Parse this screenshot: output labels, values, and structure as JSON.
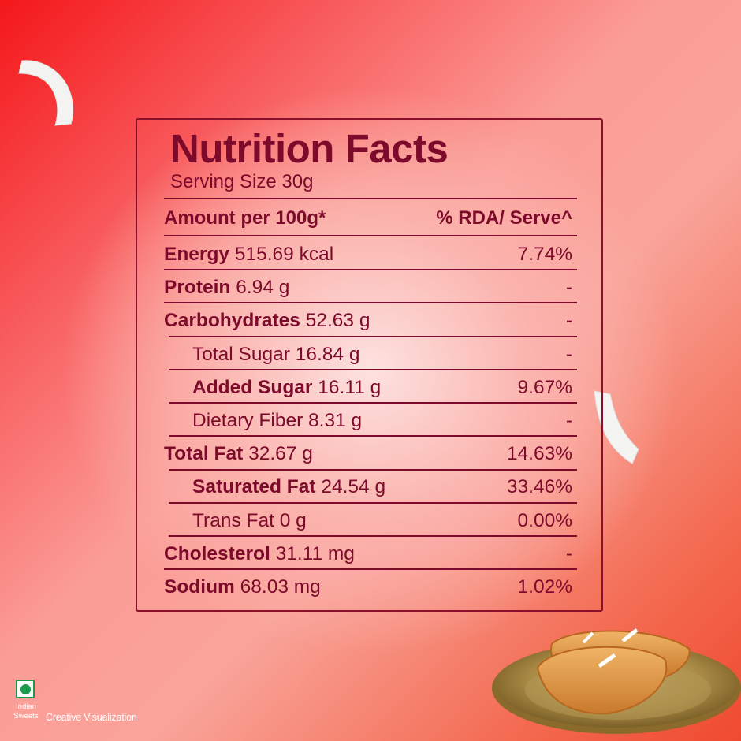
{
  "label": {
    "title": "Nutrition Facts",
    "serving_size": "Serving Size 30g",
    "header": {
      "left": "Amount per 100g*",
      "right": "% RDA/ Serve^"
    },
    "rows": [
      {
        "name": "Energy",
        "amount": "515.69 kcal",
        "rda": "7.74%",
        "bold": true,
        "indent": false
      },
      {
        "name": "Protein",
        "amount": "6.94 g",
        "rda": "-",
        "bold": true,
        "indent": false
      },
      {
        "name": "Carbohydrates",
        "amount": "52.63 g",
        "rda": "-",
        "bold": true,
        "indent": false
      },
      {
        "name": "Total Sugar",
        "amount": "16.84 g",
        "rda": "-",
        "bold": false,
        "indent": true
      },
      {
        "name": "Added Sugar",
        "amount": "16.11 g",
        "rda": "9.67%",
        "bold": true,
        "indent": true
      },
      {
        "name": "Dietary Fiber",
        "amount": "8.31 g",
        "rda": "-",
        "bold": false,
        "indent": true
      },
      {
        "name": "Total Fat",
        "amount": "32.67 g",
        "rda": "14.63%",
        "bold": true,
        "indent": false
      },
      {
        "name": "Saturated Fat",
        "amount": "24.54 g",
        "rda": "33.46%",
        "bold": true,
        "indent": true
      },
      {
        "name": "Trans Fat",
        "amount": "0 g",
        "rda": "0.00%",
        "bold": false,
        "indent": true
      },
      {
        "name": "Cholesterol",
        "amount": " 31.11 mg",
        "rda": "-",
        "bold": true,
        "indent": false
      },
      {
        "name": "Sodium",
        "amount": " 68.03 mg",
        "rda": "1.02%",
        "bold": true,
        "indent": false
      }
    ]
  },
  "badge": {
    "veg_symbol": "veg-mark-icon",
    "brand_line1": "Indian",
    "brand_line2": "Sweets",
    "caption": "Creative Visualization"
  },
  "images": {
    "coconut_top_left": "coconut-slice",
    "coconut_right": "coconut-slice",
    "dish": "gujiya-on-brass-plate"
  },
  "colors": {
    "text": "#7d0a2b",
    "border": "#8a0f2b",
    "bg_red": "#f4171a",
    "veg_green": "#1b9a4a"
  }
}
